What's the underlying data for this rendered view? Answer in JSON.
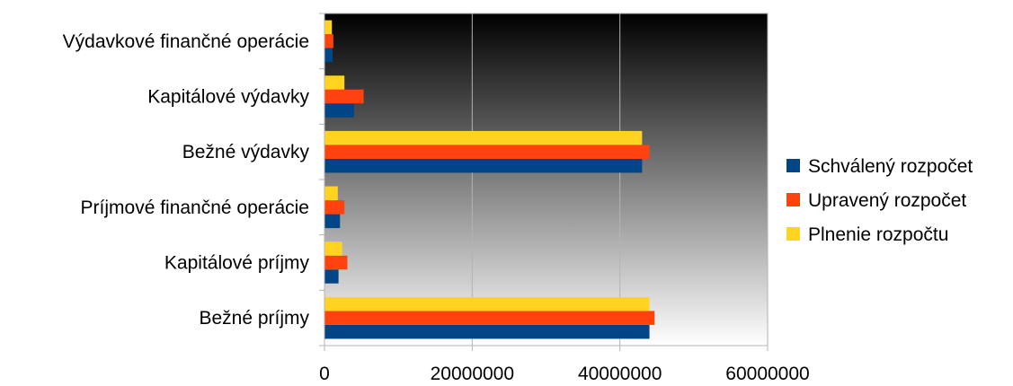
{
  "chart_data": {
    "type": "bar",
    "orientation": "horizontal",
    "title": "",
    "xlabel": "",
    "ylabel": "",
    "categories": [
      "Bežné príjmy",
      "Kapitálové príjmy",
      "Príjmové finančné operácie",
      "Bežné výdavky",
      "Kapitálové výdavky",
      "Výdavkové finančné operácie"
    ],
    "series": [
      {
        "name": "Schválený rozpočet",
        "color": "#004586",
        "values": [
          44000000,
          1900000,
          2100000,
          43000000,
          4000000,
          1100000
        ]
      },
      {
        "name": "Upravený rozpočet",
        "color": "#ff420e",
        "values": [
          44700000,
          3100000,
          2700000,
          44000000,
          5300000,
          1200000
        ]
      },
      {
        "name": "Plnenie rozpočtu",
        "color": "#ffd320",
        "values": [
          44000000,
          2400000,
          1800000,
          43000000,
          2700000,
          1000000
        ]
      }
    ],
    "xlim": [
      0,
      60000000
    ],
    "xticks": [
      "0",
      "20000000",
      "40000000",
      "60000000"
    ],
    "grid": true,
    "legend": "right",
    "background": "gradient black-to-white"
  }
}
